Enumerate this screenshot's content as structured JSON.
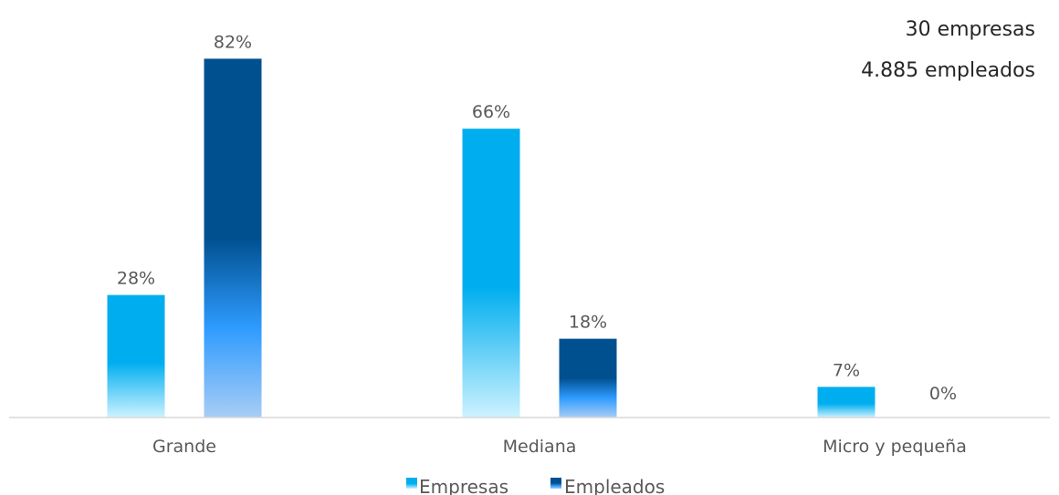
{
  "chart_data": {
    "type": "bar",
    "categories": [
      "Grande",
      "Mediana",
      "Micro y pequeña"
    ],
    "series": [
      {
        "name": "Empresas",
        "values": [
          28,
          66,
          7
        ],
        "labels": [
          "28%",
          "66%",
          "7%"
        ]
      },
      {
        "name": "Empleados",
        "values": [
          82,
          18,
          0
        ],
        "labels": [
          "82%",
          "18%",
          "0%"
        ]
      }
    ],
    "ylim": [
      0,
      100
    ],
    "unit": "%",
    "annotations": [
      "30 empresas",
      "4.885 empleados"
    ],
    "legend_position": "bottom",
    "grid": false
  },
  "colors": {
    "empresas_top": "#00AEEF",
    "empresas_bottom": "#C9F0FF",
    "empleados_top": "#00508F",
    "empleados_mid": "#2E9BFF",
    "empleados_bottom": "#A8CDF5",
    "axis": "#D9D9D9",
    "text": "#595959"
  }
}
